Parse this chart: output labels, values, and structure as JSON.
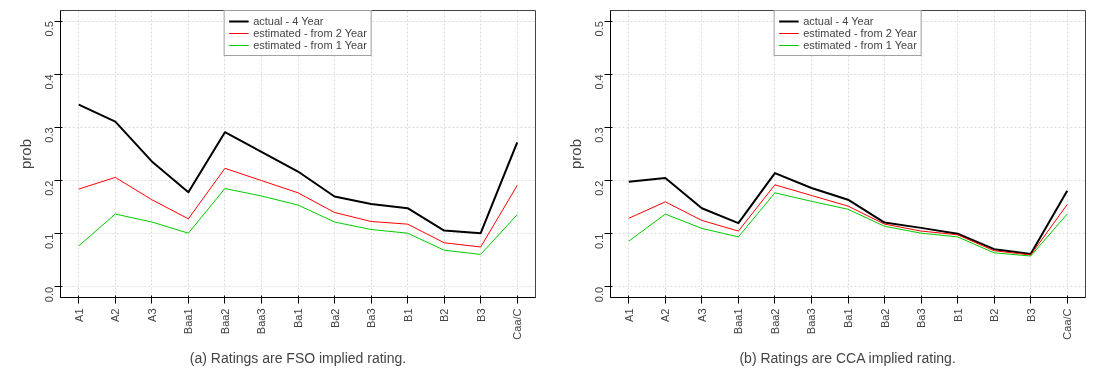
{
  "chart_data": [
    {
      "type": "line",
      "ylabel": "prob",
      "categories": [
        "A1",
        "A2",
        "A3",
        "Baa1",
        "Baa2",
        "Baa3",
        "Ba1",
        "Ba2",
        "Ba3",
        "B1",
        "B2",
        "B3",
        "Caa/C"
      ],
      "series": [
        {
          "name": "actual - 4 Year",
          "color": "#000000",
          "values": [
            0.343,
            0.311,
            0.236,
            0.178,
            0.291,
            0.254,
            0.217,
            0.17,
            0.156,
            0.148,
            0.106,
            0.101,
            0.272
          ]
        },
        {
          "name": "estimated - from 2 Year",
          "color": "#ff0000",
          "values": [
            0.184,
            0.206,
            0.164,
            0.128,
            0.223,
            0.2,
            0.177,
            0.14,
            0.123,
            0.118,
            0.083,
            0.075,
            0.191
          ]
        },
        {
          "name": "estimated - from 1 Year",
          "color": "#00cc00",
          "values": [
            0.077,
            0.137,
            0.122,
            0.101,
            0.185,
            0.171,
            0.154,
            0.122,
            0.108,
            0.101,
            0.069,
            0.061,
            0.136
          ]
        }
      ],
      "ylim": [
        -0.02,
        0.52
      ],
      "yticks": [
        {
          "value": 0,
          "label": "0.0"
        },
        0.1,
        0.2,
        0.3,
        0.4,
        0.5
      ],
      "grid": true,
      "legend": "top",
      "annotations": [
        "(a) Ratings are FSO implied rating."
      ]
    },
    {
      "type": "line",
      "ylabel": "prob",
      "categories": [
        "A1",
        "A2",
        "A3",
        "Baa1",
        "Baa2",
        "Baa3",
        "Ba1",
        "Ba2",
        "Ba3",
        "B1",
        "B2",
        "B3",
        "Caa/C"
      ],
      "series": [
        {
          "name": "actual - 4 Year",
          "color": "#000000",
          "values": [
            0.198,
            0.205,
            0.148,
            0.12,
            0.214,
            0.186,
            0.164,
            0.121,
            0.111,
            0.1,
            0.071,
            0.062,
            0.181
          ]
        },
        {
          "name": "estimated - from 2 Year",
          "color": "#ff0000",
          "values": [
            0.129,
            0.16,
            0.125,
            0.105,
            0.192,
            0.172,
            0.152,
            0.118,
            0.105,
            0.098,
            0.068,
            0.06,
            0.155
          ]
        },
        {
          "name": "estimated - from 1 Year",
          "color": "#00cc00",
          "values": [
            0.086,
            0.137,
            0.11,
            0.094,
            0.177,
            0.161,
            0.146,
            0.114,
            0.101,
            0.094,
            0.064,
            0.058,
            0.137
          ]
        }
      ],
      "ylim": [
        -0.02,
        0.52
      ],
      "yticks": [
        {
          "value": 0,
          "label": "0.0"
        },
        0.1,
        0.2,
        0.3,
        0.4,
        0.5
      ],
      "grid": true,
      "legend": "top",
      "annotations": [
        "(b) Ratings are CCA implied rating."
      ]
    }
  ]
}
